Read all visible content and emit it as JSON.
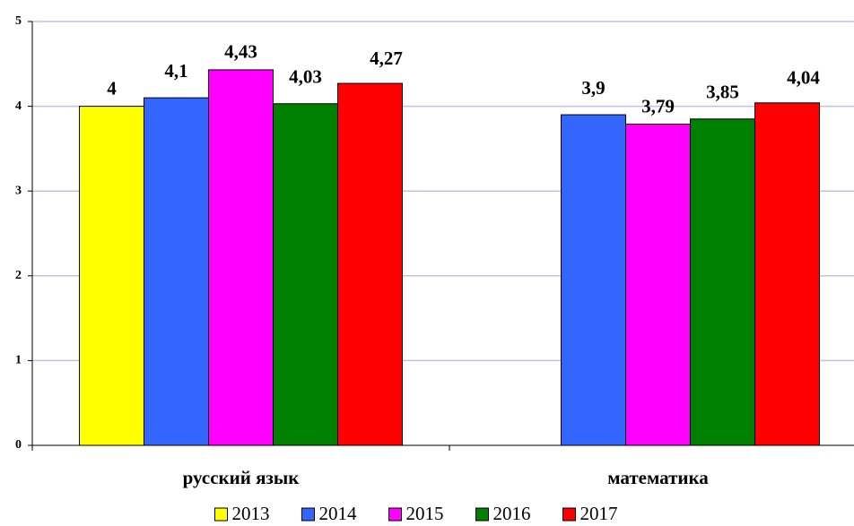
{
  "chart_data": {
    "type": "bar",
    "categories": [
      "русский язык",
      "математика"
    ],
    "series": [
      {
        "name": "2013",
        "color": "#ffff00",
        "values": [
          4,
          null
        ],
        "value_labels": [
          "4",
          null
        ]
      },
      {
        "name": "2014",
        "color": "#3366ff",
        "values": [
          4.1,
          3.9
        ],
        "value_labels": [
          "4,1",
          "3,9"
        ]
      },
      {
        "name": "2015",
        "color": "#ff00ff",
        "values": [
          4.43,
          3.79
        ],
        "value_labels": [
          "4,43",
          "3,79"
        ]
      },
      {
        "name": "2016",
        "color": "#008000",
        "values": [
          4.03,
          3.85
        ],
        "value_labels": [
          "4,03",
          "3,85"
        ]
      },
      {
        "name": "2017",
        "color": "#ff0000",
        "values": [
          4.27,
          4.04
        ],
        "value_labels": [
          "4,27",
          "4,04"
        ]
      }
    ],
    "ylim": [
      0,
      5
    ],
    "yticks": [
      0,
      1,
      2,
      3,
      4,
      5
    ],
    "grid": true,
    "legend": "bottom"
  }
}
